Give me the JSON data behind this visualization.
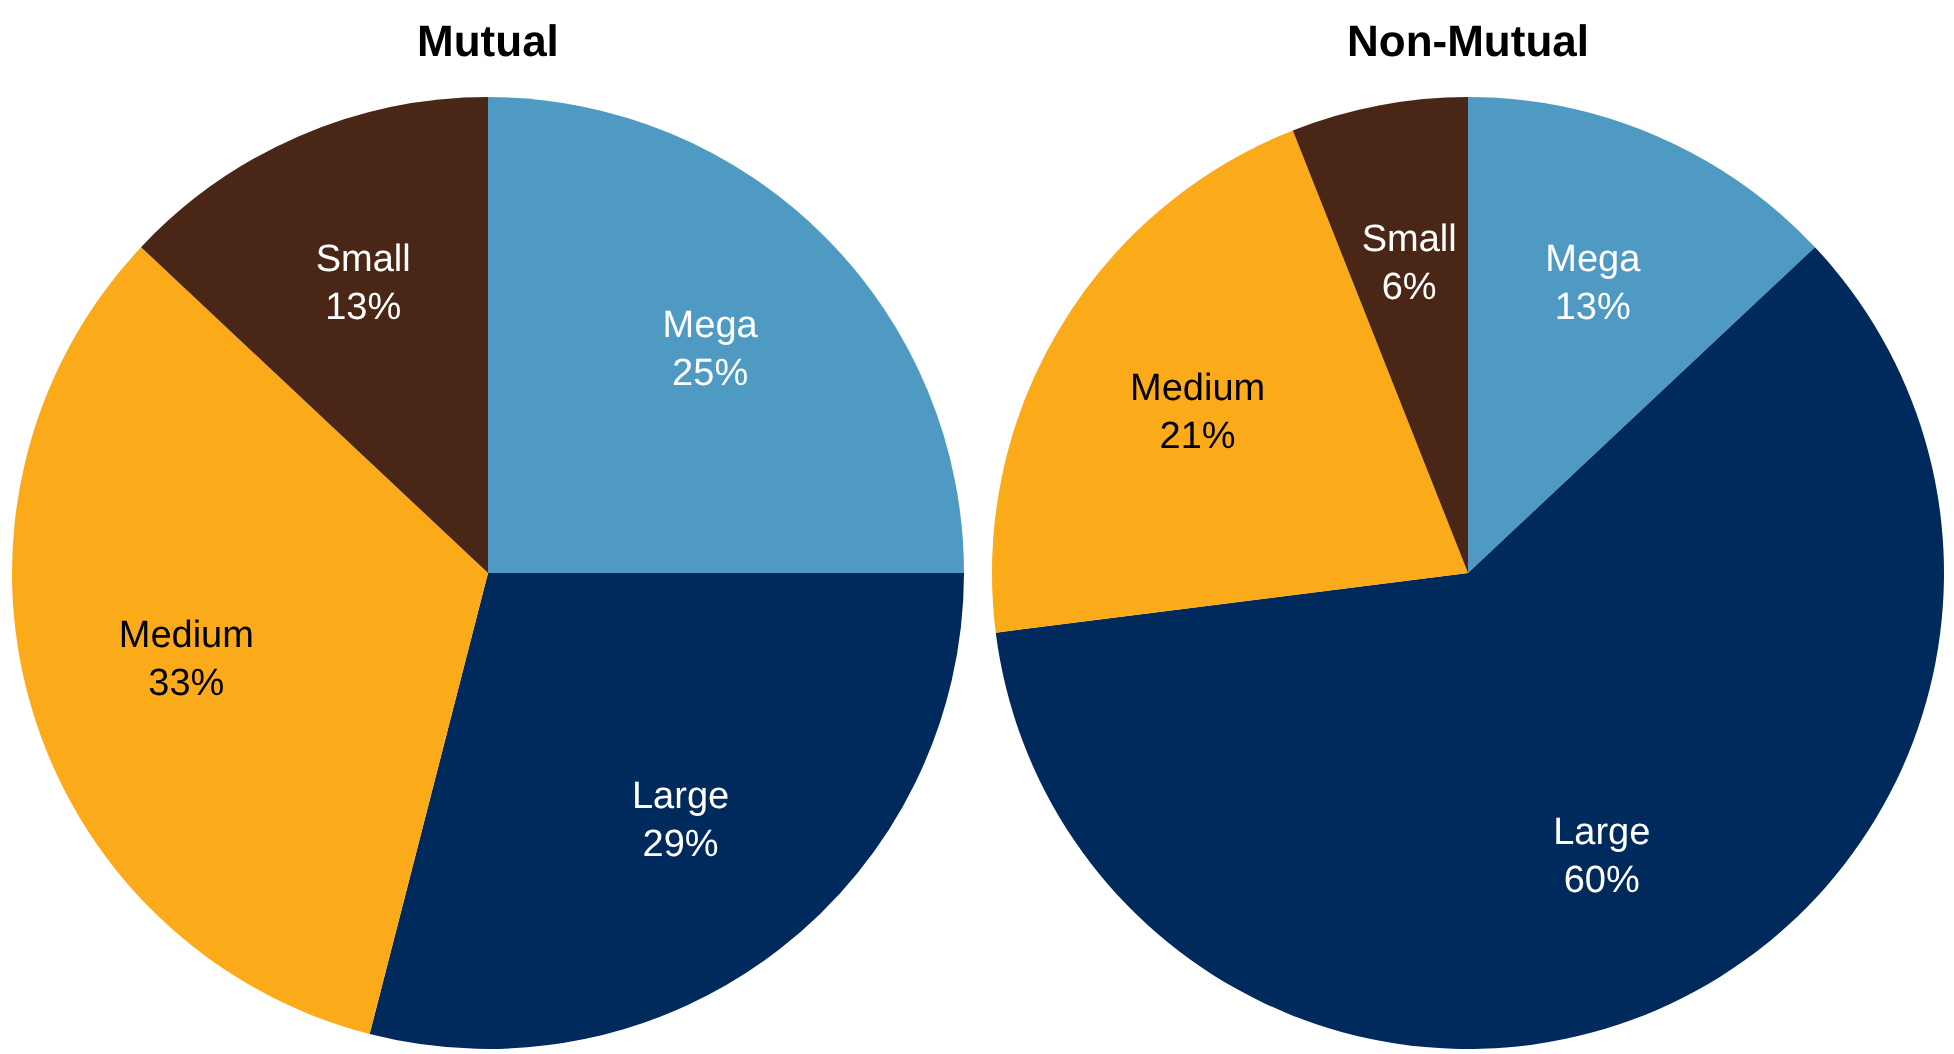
{
  "chart_data": [
    {
      "type": "pie",
      "title": "Mutual",
      "categories": [
        "Mega",
        "Large",
        "Medium",
        "Small"
      ],
      "values": [
        25,
        29,
        33,
        13
      ],
      "value_labels": [
        "25%",
        "29%",
        "33%",
        "13%"
      ],
      "colors": [
        "#4f9ac3",
        "#002a5c",
        "#fbaa19",
        "#4a2616"
      ],
      "legend": false
    },
    {
      "type": "pie",
      "title": "Non-Mutual",
      "categories": [
        "Mega",
        "Large",
        "Medium",
        "Small"
      ],
      "values": [
        13,
        60,
        21,
        6
      ],
      "value_labels": [
        "13%",
        "60%",
        "21%",
        "6%"
      ],
      "colors": [
        "#4f9ac3",
        "#002a5c",
        "#fbaa19",
        "#4a2616"
      ],
      "legend": false
    }
  ]
}
